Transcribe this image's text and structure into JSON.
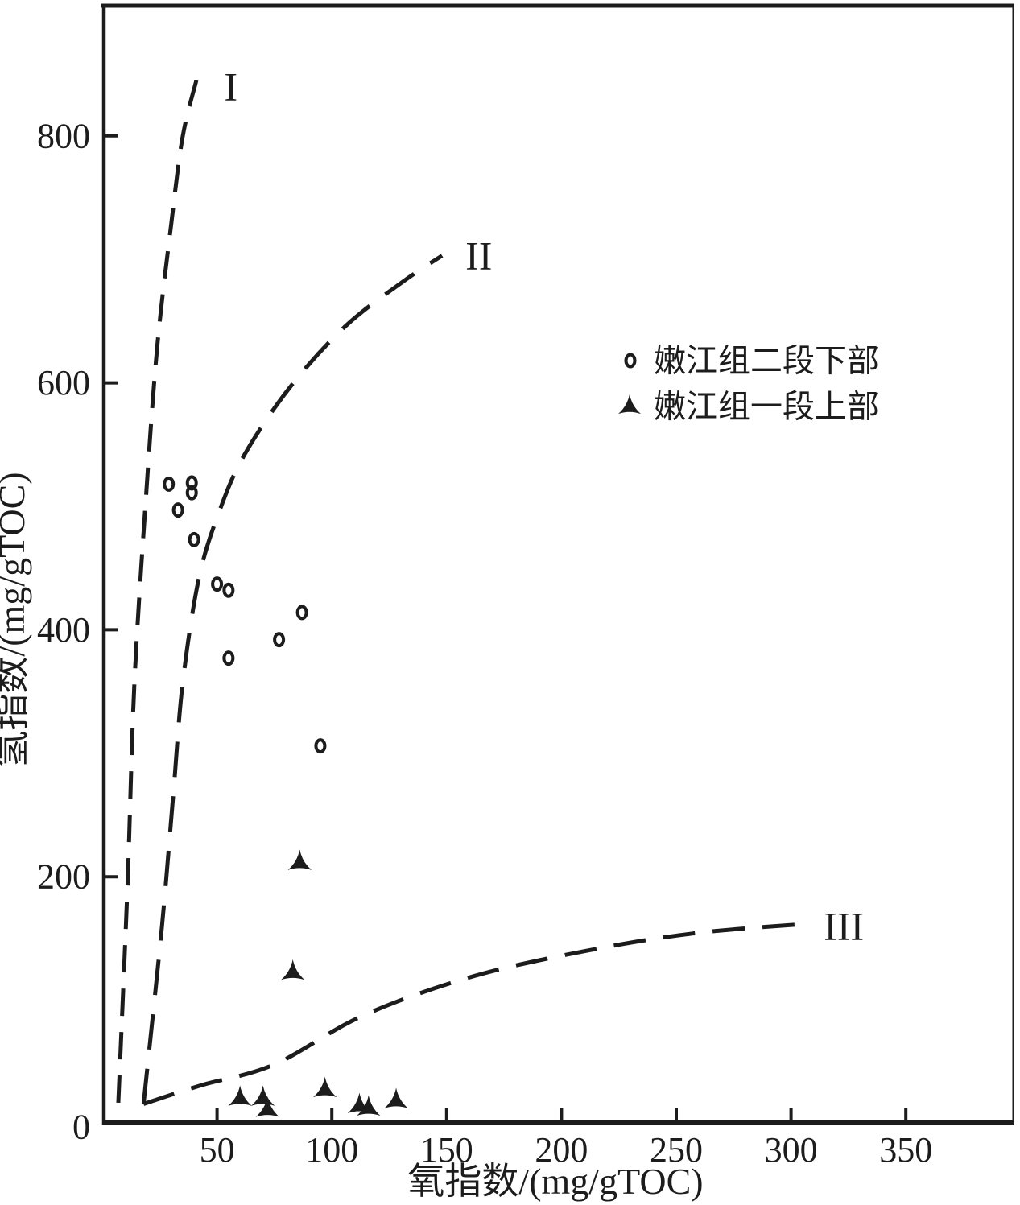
{
  "figure": {
    "background": "#ffffff",
    "ink_color": "#1c1c1c"
  },
  "chart_data": {
    "type": "scatter",
    "title": "",
    "xlabel": "氧指数/(mg/gTOC)",
    "ylabel": "氢指数/(mg/gTOC)",
    "xlim": [
      0,
      396
    ],
    "ylim": [
      0,
      907
    ],
    "x_ticks": [
      50,
      100,
      150,
      200,
      250,
      300,
      350
    ],
    "y_ticks": [
      0,
      200,
      400,
      600,
      800
    ],
    "grid": false,
    "legend_position": "upper-right-inside",
    "series": [
      {
        "name": "嫩江组二段下部",
        "marker": "open-circle",
        "points": [
          [
            29,
            518
          ],
          [
            39,
            519
          ],
          [
            39,
            511
          ],
          [
            33,
            497
          ],
          [
            40,
            473
          ],
          [
            50,
            437
          ],
          [
            55,
            432
          ],
          [
            87,
            414
          ],
          [
            77,
            392
          ],
          [
            55,
            377
          ],
          [
            95,
            306
          ]
        ]
      },
      {
        "name": "嫩江组一段上部",
        "marker": "tri-star",
        "points": [
          [
            86,
            211
          ],
          [
            83,
            122
          ],
          [
            60,
            20
          ],
          [
            70,
            20
          ],
          [
            72,
            11
          ],
          [
            97,
            27
          ],
          [
            112,
            14
          ],
          [
            116,
            12
          ],
          [
            128,
            18
          ]
        ]
      }
    ],
    "boundary_curves": [
      {
        "label": "I",
        "label_pos": [
          56,
          840
        ],
        "points": [
          [
            7,
            17
          ],
          [
            11,
            193
          ],
          [
            14,
            356
          ],
          [
            19,
            506
          ],
          [
            24,
            630
          ],
          [
            30,
            728
          ],
          [
            35,
            799
          ],
          [
            41,
            845
          ]
        ]
      },
      {
        "label": "II",
        "label_pos": [
          164,
          703
        ],
        "points": [
          [
            18,
            16
          ],
          [
            26,
            160
          ],
          [
            31,
            268
          ],
          [
            35,
            356
          ],
          [
            42,
            441
          ],
          [
            51,
            496
          ],
          [
            62,
            542
          ],
          [
            82,
            597
          ],
          [
            106,
            646
          ],
          [
            131,
            682
          ],
          [
            148,
            703
          ]
        ]
      },
      {
        "label": "III",
        "label_pos": [
          323,
          160
        ],
        "points": [
          [
            18,
            16
          ],
          [
            43,
            31
          ],
          [
            75,
            48
          ],
          [
            113,
            87
          ],
          [
            159,
            118
          ],
          [
            208,
            139
          ],
          [
            257,
            154
          ],
          [
            308,
            162
          ]
        ]
      }
    ],
    "legend": {
      "items": [
        {
          "marker": "open-circle",
          "label": "嫩江组二段下部"
        },
        {
          "marker": "tri-star",
          "label": "嫩江组一段上部"
        }
      ]
    }
  }
}
